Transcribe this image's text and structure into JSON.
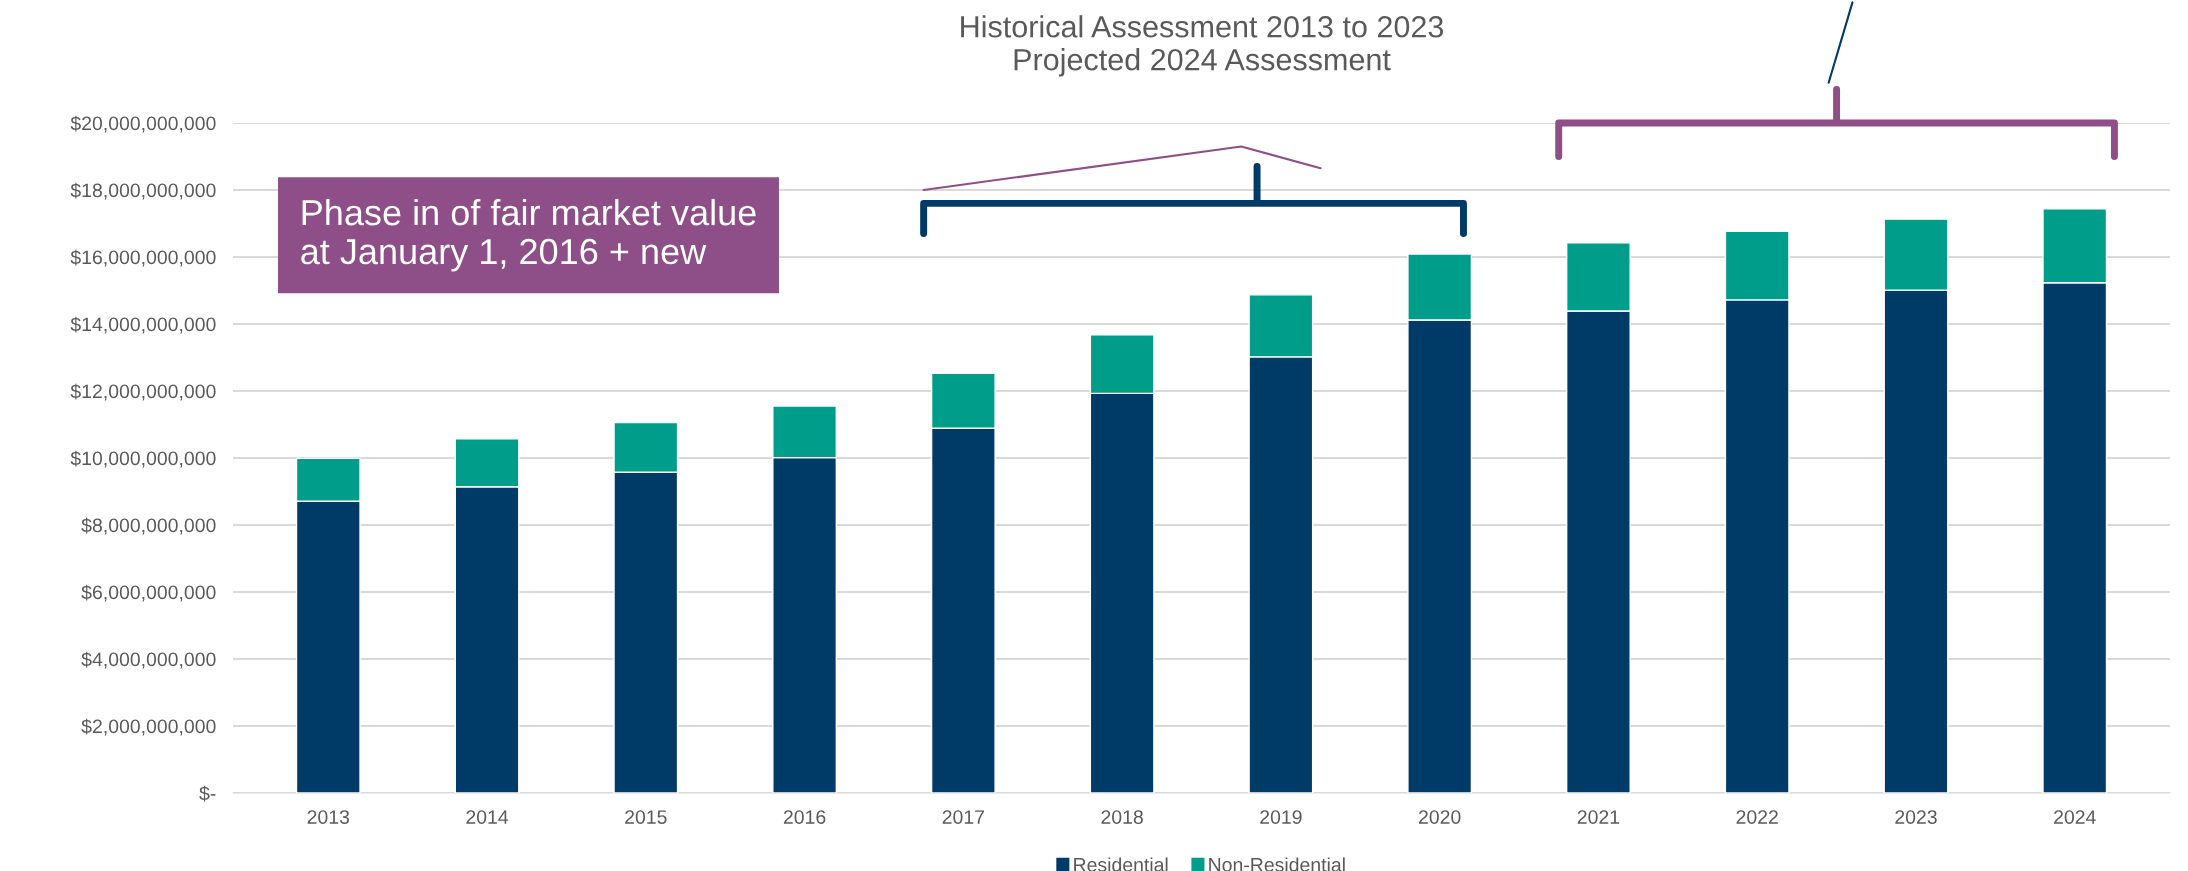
{
  "chart_data": {
    "type": "bar",
    "title": "Historical Assessment 2013 to 2023\nProjected 2024 Assessment",
    "categories": [
      "2013",
      "2014",
      "2015",
      "2016",
      "2017",
      "2018",
      "2019",
      "2020",
      "2021",
      "2022",
      "2023",
      "2024"
    ],
    "stacked": true,
    "series": [
      {
        "name": "Residential",
        "color": "#003a66",
        "values": [
          8710000000,
          9140000000,
          9580000000,
          10010000000,
          10890000000,
          11930000000,
          13020000000,
          14120000000,
          14390000000,
          14720000000,
          15010000000,
          15230000000
        ]
      },
      {
        "name": "Non-Residential",
        "color": "#009e8a",
        "values": [
          1280000000,
          1430000000,
          1480000000,
          1540000000,
          1640000000,
          1750000000,
          1850000000,
          1970000000,
          2030000000,
          2050000000,
          2120000000,
          2210000000
        ]
      }
    ],
    "ylim": [
      0,
      20000000000
    ],
    "yticks": [
      {
        "value": 0,
        "label": "$-"
      },
      {
        "value": 2000000000,
        "label": "$2,000,000,000"
      },
      {
        "value": 4000000000,
        "label": "$4,000,000,000"
      },
      {
        "value": 6000000000,
        "label": "$6,000,000,000"
      },
      {
        "value": 8000000000,
        "label": "$8,000,000,000"
      },
      {
        "value": 10000000000,
        "label": "$10,000,000,000"
      },
      {
        "value": 12000000000,
        "label": "$12,000,000,000"
      },
      {
        "value": 14000000000,
        "label": "$14,000,000,000"
      },
      {
        "value": 16000000000,
        "label": "$16,000,000,000"
      },
      {
        "value": 18000000000,
        "label": "$18,000,000,000"
      },
      {
        "value": 20000000000,
        "label": "$20,000,000,000"
      }
    ],
    "grid": "y",
    "legend": "bottom",
    "annotations": [
      "Phase in of fair market value\nat January 1, 2016 + new"
    ]
  }
}
